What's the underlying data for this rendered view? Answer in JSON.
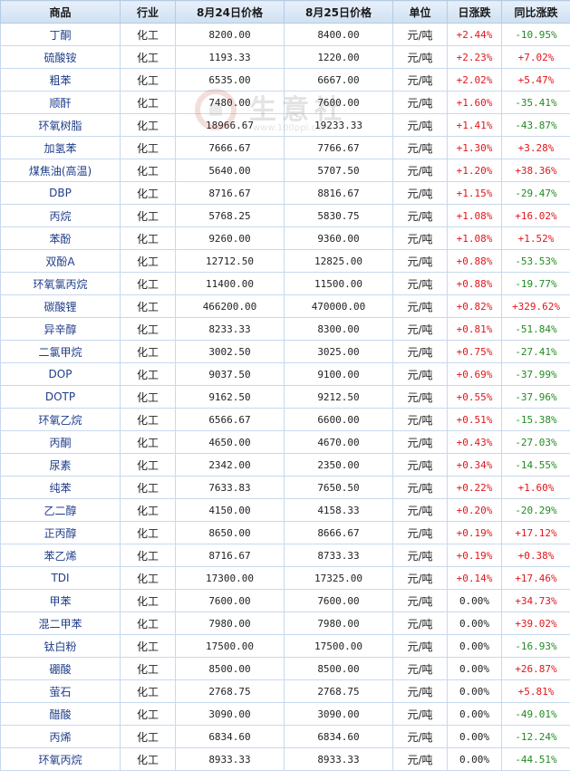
{
  "header": {
    "product": "商品",
    "industry": "行业",
    "price_aug24": "8月24日价格",
    "price_aug25": "8月25日价格",
    "unit": "单位",
    "daily_change": "日涨跌",
    "yoy_change": "同比涨跌"
  },
  "watermark": {
    "brand": "生意社",
    "url": "www.100ppi.com"
  },
  "colors": {
    "up": "#e0161b",
    "down": "#228b22",
    "header_bg": "#d9e7f5",
    "border": "#c7d9ee"
  },
  "rows": [
    {
      "name": "丁酮",
      "industry": "化工",
      "p24": "8200.00",
      "p25": "8400.00",
      "unit": "元/吨",
      "daily": "+2.44%",
      "yoy": "-10.95%"
    },
    {
      "name": "硫酸铵",
      "industry": "化工",
      "p24": "1193.33",
      "p25": "1220.00",
      "unit": "元/吨",
      "daily": "+2.23%",
      "yoy": "+7.02%"
    },
    {
      "name": "粗苯",
      "industry": "化工",
      "p24": "6535.00",
      "p25": "6667.00",
      "unit": "元/吨",
      "daily": "+2.02%",
      "yoy": "+5.47%"
    },
    {
      "name": "顺酐",
      "industry": "化工",
      "p24": "7480.00",
      "p25": "7600.00",
      "unit": "元/吨",
      "daily": "+1.60%",
      "yoy": "-35.41%"
    },
    {
      "name": "环氧树脂",
      "industry": "化工",
      "p24": "18966.67",
      "p25": "19233.33",
      "unit": "元/吨",
      "daily": "+1.41%",
      "yoy": "-43.87%"
    },
    {
      "name": "加氢苯",
      "industry": "化工",
      "p24": "7666.67",
      "p25": "7766.67",
      "unit": "元/吨",
      "daily": "+1.30%",
      "yoy": "+3.28%"
    },
    {
      "name": "煤焦油(高温)",
      "industry": "化工",
      "p24": "5640.00",
      "p25": "5707.50",
      "unit": "元/吨",
      "daily": "+1.20%",
      "yoy": "+38.36%"
    },
    {
      "name": "DBP",
      "industry": "化工",
      "p24": "8716.67",
      "p25": "8816.67",
      "unit": "元/吨",
      "daily": "+1.15%",
      "yoy": "-29.47%"
    },
    {
      "name": "丙烷",
      "industry": "化工",
      "p24": "5768.25",
      "p25": "5830.75",
      "unit": "元/吨",
      "daily": "+1.08%",
      "yoy": "+16.02%"
    },
    {
      "name": "苯酚",
      "industry": "化工",
      "p24": "9260.00",
      "p25": "9360.00",
      "unit": "元/吨",
      "daily": "+1.08%",
      "yoy": "+1.52%"
    },
    {
      "name": "双酚A",
      "industry": "化工",
      "p24": "12712.50",
      "p25": "12825.00",
      "unit": "元/吨",
      "daily": "+0.88%",
      "yoy": "-53.53%"
    },
    {
      "name": "环氧氯丙烷",
      "industry": "化工",
      "p24": "11400.00",
      "p25": "11500.00",
      "unit": "元/吨",
      "daily": "+0.88%",
      "yoy": "-19.77%"
    },
    {
      "name": "碳酸锂",
      "industry": "化工",
      "p24": "466200.00",
      "p25": "470000.00",
      "unit": "元/吨",
      "daily": "+0.82%",
      "yoy": "+329.62%"
    },
    {
      "name": "异辛醇",
      "industry": "化工",
      "p24": "8233.33",
      "p25": "8300.00",
      "unit": "元/吨",
      "daily": "+0.81%",
      "yoy": "-51.84%"
    },
    {
      "name": "二氯甲烷",
      "industry": "化工",
      "p24": "3002.50",
      "p25": "3025.00",
      "unit": "元/吨",
      "daily": "+0.75%",
      "yoy": "-27.41%"
    },
    {
      "name": "DOP",
      "industry": "化工",
      "p24": "9037.50",
      "p25": "9100.00",
      "unit": "元/吨",
      "daily": "+0.69%",
      "yoy": "-37.99%"
    },
    {
      "name": "DOTP",
      "industry": "化工",
      "p24": "9162.50",
      "p25": "9212.50",
      "unit": "元/吨",
      "daily": "+0.55%",
      "yoy": "-37.96%"
    },
    {
      "name": "环氧乙烷",
      "industry": "化工",
      "p24": "6566.67",
      "p25": "6600.00",
      "unit": "元/吨",
      "daily": "+0.51%",
      "yoy": "-15.38%"
    },
    {
      "name": "丙酮",
      "industry": "化工",
      "p24": "4650.00",
      "p25": "4670.00",
      "unit": "元/吨",
      "daily": "+0.43%",
      "yoy": "-27.03%"
    },
    {
      "name": "尿素",
      "industry": "化工",
      "p24": "2342.00",
      "p25": "2350.00",
      "unit": "元/吨",
      "daily": "+0.34%",
      "yoy": "-14.55%"
    },
    {
      "name": "纯苯",
      "industry": "化工",
      "p24": "7633.83",
      "p25": "7650.50",
      "unit": "元/吨",
      "daily": "+0.22%",
      "yoy": "+1.60%"
    },
    {
      "name": "乙二醇",
      "industry": "化工",
      "p24": "4150.00",
      "p25": "4158.33",
      "unit": "元/吨",
      "daily": "+0.20%",
      "yoy": "-20.29%"
    },
    {
      "name": "正丙醇",
      "industry": "化工",
      "p24": "8650.00",
      "p25": "8666.67",
      "unit": "元/吨",
      "daily": "+0.19%",
      "yoy": "+17.12%"
    },
    {
      "name": "苯乙烯",
      "industry": "化工",
      "p24": "8716.67",
      "p25": "8733.33",
      "unit": "元/吨",
      "daily": "+0.19%",
      "yoy": "+0.38%"
    },
    {
      "name": "TDI",
      "industry": "化工",
      "p24": "17300.00",
      "p25": "17325.00",
      "unit": "元/吨",
      "daily": "+0.14%",
      "yoy": "+17.46%"
    },
    {
      "name": "甲苯",
      "industry": "化工",
      "p24": "7600.00",
      "p25": "7600.00",
      "unit": "元/吨",
      "daily": "0.00%",
      "yoy": "+34.73%"
    },
    {
      "name": "混二甲苯",
      "industry": "化工",
      "p24": "7980.00",
      "p25": "7980.00",
      "unit": "元/吨",
      "daily": "0.00%",
      "yoy": "+39.02%"
    },
    {
      "name": "钛白粉",
      "industry": "化工",
      "p24": "17500.00",
      "p25": "17500.00",
      "unit": "元/吨",
      "daily": "0.00%",
      "yoy": "-16.93%"
    },
    {
      "name": "硼酸",
      "industry": "化工",
      "p24": "8500.00",
      "p25": "8500.00",
      "unit": "元/吨",
      "daily": "0.00%",
      "yoy": "+26.87%"
    },
    {
      "name": "萤石",
      "industry": "化工",
      "p24": "2768.75",
      "p25": "2768.75",
      "unit": "元/吨",
      "daily": "0.00%",
      "yoy": "+5.81%"
    },
    {
      "name": "醋酸",
      "industry": "化工",
      "p24": "3090.00",
      "p25": "3090.00",
      "unit": "元/吨",
      "daily": "0.00%",
      "yoy": "-49.01%"
    },
    {
      "name": "丙烯",
      "industry": "化工",
      "p24": "6834.60",
      "p25": "6834.60",
      "unit": "元/吨",
      "daily": "0.00%",
      "yoy": "-12.24%"
    },
    {
      "name": "环氧丙烷",
      "industry": "化工",
      "p24": "8933.33",
      "p25": "8933.33",
      "unit": "元/吨",
      "daily": "0.00%",
      "yoy": "-44.51%"
    }
  ]
}
